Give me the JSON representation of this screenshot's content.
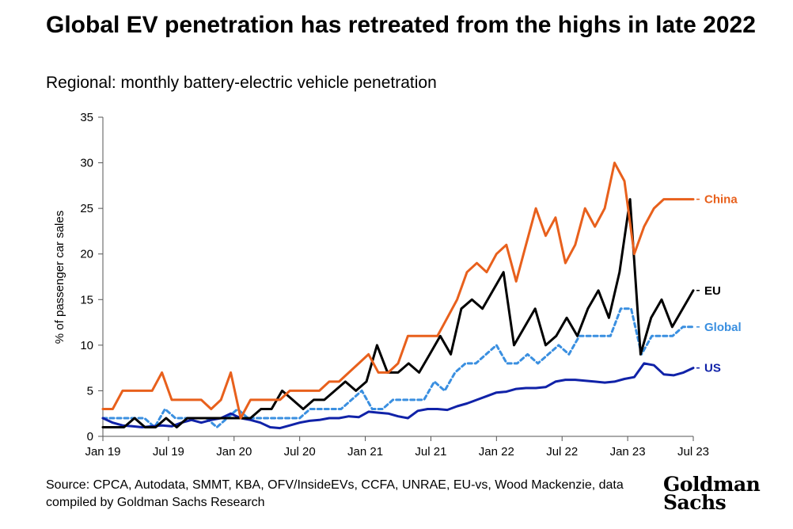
{
  "header": {
    "title": "Global EV penetration has retreated from the highs in late 2022",
    "subtitle": "Regional: monthly battery-electric vehicle penetration"
  },
  "footer": {
    "source": "Source: CPCA, Autodata, SMMT, KBA, OFV/InsideEVs, CCFA, UNRAE, EU-vs, Wood Mackenzie, data compiled by Goldman Sachs Research",
    "logo_line1": "Goldman",
    "logo_line2": "Sachs"
  },
  "chart_data": {
    "type": "line",
    "title": "Global EV penetration has retreated from the highs in late 2022",
    "subtitle": "Regional: monthly battery-electric vehicle penetration",
    "ylabel": "% of passenger car sales",
    "xlabel": "",
    "ylim": [
      0,
      35
    ],
    "yticks": [
      0,
      5,
      10,
      15,
      20,
      25,
      30,
      35
    ],
    "xticks": [
      "Jan 19",
      "Jul 19",
      "Jan 20",
      "Jul 20",
      "Jan 21",
      "Jul 21",
      "Jan 22",
      "Jul 22",
      "Jan 23",
      "Jul 23"
    ],
    "x_start": "Jan 19",
    "x_end": "Jul 23",
    "grid": false,
    "legend": "right-end labels",
    "series": [
      {
        "name": "China",
        "color": "#e8601c",
        "dash": "solid",
        "values": [
          3,
          3,
          5,
          5,
          5,
          5,
          7,
          4,
          4,
          4,
          4,
          3,
          4,
          7,
          2,
          4,
          4,
          4,
          4,
          5,
          5,
          5,
          5,
          6,
          6,
          7,
          8,
          9,
          7,
          7,
          8,
          11,
          11,
          11,
          11,
          13,
          15,
          18,
          19,
          18,
          20,
          21,
          17,
          21,
          25,
          22,
          24,
          19,
          21,
          25,
          23,
          25,
          30,
          28,
          20,
          23,
          25,
          26,
          26,
          26,
          26
        ]
      },
      {
        "name": "EU",
        "color": "#000000",
        "dash": "solid",
        "values": [
          1,
          1,
          1,
          2,
          1,
          1,
          2,
          1,
          2,
          2,
          2,
          2,
          2,
          2,
          2,
          3,
          3,
          5,
          4,
          3,
          4,
          4,
          5,
          6,
          5,
          6,
          10,
          7,
          7,
          8,
          7,
          9,
          11,
          9,
          14,
          15,
          14,
          16,
          18,
          10,
          12,
          14,
          10,
          11,
          13,
          11,
          14,
          16,
          13,
          18,
          26,
          9,
          13,
          15,
          12,
          14,
          16
        ]
      },
      {
        "name": "Global",
        "color": "#3a8fe0",
        "dash": "dashed",
        "values": [
          2,
          2,
          2,
          2,
          2,
          1,
          3,
          2,
          2,
          2,
          2,
          1,
          2,
          3,
          2,
          2,
          2,
          2,
          2,
          2,
          3,
          3,
          3,
          3,
          4,
          5,
          3,
          3,
          4,
          4,
          4,
          4,
          6,
          5,
          7,
          8,
          8,
          9,
          10,
          8,
          8,
          9,
          8,
          9,
          10,
          9,
          11,
          11,
          11,
          11,
          14,
          14,
          9,
          11,
          11,
          11,
          12,
          12
        ]
      },
      {
        "name": "US",
        "color": "#1022a8",
        "dash": "solid",
        "values": [
          2,
          1.5,
          1.2,
          1.1,
          1,
          1.1,
          1.2,
          1.1,
          1.5,
          1.8,
          1.5,
          1.8,
          2,
          2.5,
          2,
          1.8,
          1.5,
          1,
          0.9,
          1.2,
          1.5,
          1.7,
          1.8,
          2,
          2,
          2.2,
          2.1,
          2.7,
          2.6,
          2.5,
          2.2,
          2,
          2.8,
          3,
          3,
          2.9,
          3.3,
          3.6,
          4,
          4.4,
          4.8,
          4.9,
          5.2,
          5.3,
          5.3,
          5.4,
          6,
          6.2,
          6.2,
          6.1,
          6,
          5.9,
          6,
          6.3,
          6.5,
          8,
          7.8,
          6.8,
          6.7,
          7,
          7.5
        ]
      }
    ]
  }
}
